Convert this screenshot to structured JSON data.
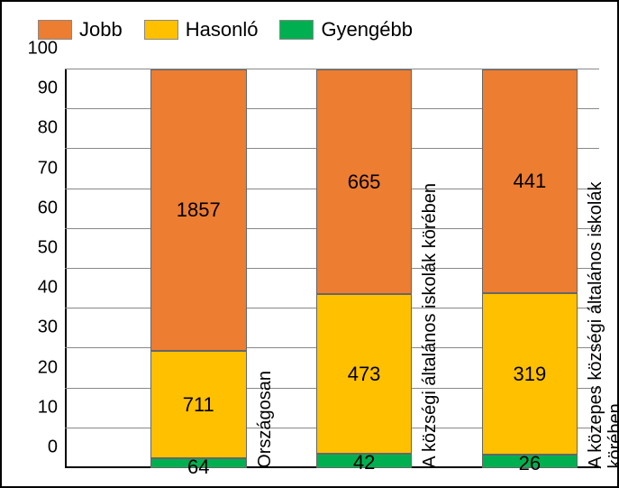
{
  "chart": {
    "type": "stacked-bar-100",
    "background_color": "#ffffff",
    "border_color": "#000000",
    "grid_color": "#888888",
    "axis_color": "#000000",
    "legend_fontsize": 22,
    "axis_fontsize": 20,
    "value_fontsize": 22,
    "ylim": [
      0,
      100
    ],
    "ytick_step": 10,
    "series": [
      {
        "key": "jobb",
        "label": "Jobb",
        "color": "#ed7d31"
      },
      {
        "key": "hasonlo",
        "label": "Hasonló",
        "color": "#ffc000"
      },
      {
        "key": "gyengebb",
        "label": "Gyengébb",
        "color": "#00b050"
      }
    ],
    "categories": [
      {
        "label": "Országosan",
        "values": {
          "jobb": 1857,
          "hasonlo": 711,
          "gyengebb": 64
        },
        "percent": {
          "jobb": 70.6,
          "hasonlo": 27.0,
          "gyengebb": 2.4
        }
      },
      {
        "label": "A községi általános iskolák körében",
        "values": {
          "jobb": 665,
          "hasonlo": 473,
          "gyengebb": 42
        },
        "percent": {
          "jobb": 56.4,
          "hasonlo": 40.0,
          "gyengebb": 3.6
        }
      },
      {
        "label": "A közepes községi általános iskolák körében",
        "values": {
          "jobb": 441,
          "hasonlo": 319,
          "gyengebb": 26
        },
        "percent": {
          "jobb": 56.1,
          "hasonlo": 40.6,
          "gyengebb": 3.3
        }
      }
    ],
    "bar_width_pct": 18,
    "bar_positions_pct": [
      16,
      47,
      78
    ],
    "label_offset_pct": 1.5
  }
}
